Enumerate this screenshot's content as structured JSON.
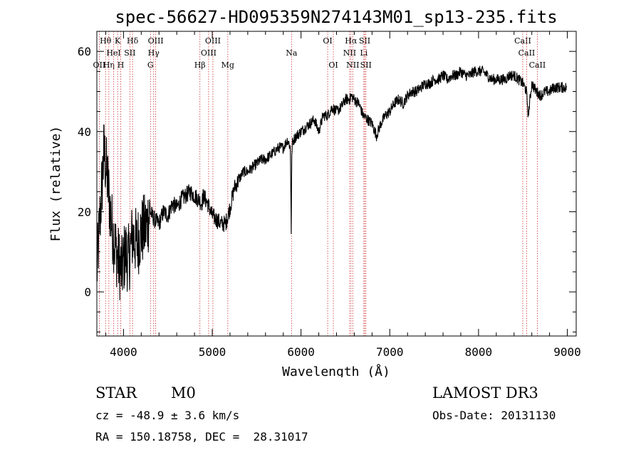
{
  "chart_data": {
    "type": "line",
    "title": "spec-56627-HD095359N274143M01_sp13-235.fits",
    "xlabel": "Wavelength (Å)",
    "ylabel": "Flux (relative)",
    "xlim": [
      3700,
      9100
    ],
    "ylim": [
      -11,
      65
    ],
    "xticks": [
      4000,
      5000,
      6000,
      7000,
      8000,
      9000
    ],
    "yticks": [
      0,
      20,
      40,
      60
    ],
    "series": [
      {
        "name": "spectrum",
        "x": [
          3700,
          3740,
          3780,
          3820,
          3860,
          3900,
          3940,
          3980,
          4020,
          4060,
          4100,
          4150,
          4200,
          4250,
          4300,
          4350,
          4400,
          4450,
          4500,
          4550,
          4600,
          4650,
          4700,
          4750,
          4800,
          4850,
          4880,
          4900,
          4950,
          5000,
          5050,
          5100,
          5150,
          5200,
          5250,
          5300,
          5350,
          5400,
          5450,
          5500,
          5550,
          5600,
          5650,
          5700,
          5750,
          5800,
          5850,
          5880,
          5890,
          5895,
          5900,
          5920,
          5950,
          6000,
          6050,
          6100,
          6150,
          6200,
          6250,
          6300,
          6350,
          6400,
          6450,
          6500,
          6550,
          6563,
          6600,
          6650,
          6700,
          6750,
          6800,
          6850,
          6900,
          6950,
          7000,
          7050,
          7100,
          7150,
          7200,
          7250,
          7300,
          7350,
          7400,
          7450,
          7500,
          7550,
          7600,
          7650,
          7700,
          7750,
          7800,
          7850,
          7900,
          7950,
          8000,
          8050,
          8100,
          8150,
          8200,
          8250,
          8300,
          8350,
          8400,
          8450,
          8500,
          8540,
          8560,
          8600,
          8650,
          8700,
          8750,
          8800,
          8850,
          8900,
          8950,
          8990
        ],
        "y": [
          5,
          20,
          35,
          28,
          18,
          12,
          8,
          5,
          10,
          8,
          14,
          12,
          15,
          16,
          20,
          18,
          17,
          20,
          19,
          22,
          21,
          23,
          24,
          25,
          24,
          23,
          22,
          24,
          22,
          19,
          18,
          17,
          17,
          21,
          26,
          28,
          30,
          30,
          31,
          32,
          33,
          33,
          34,
          35,
          36,
          36,
          38,
          36,
          15,
          32,
          37,
          38,
          39,
          40,
          41,
          42,
          43,
          40,
          44,
          44,
          46,
          45,
          46,
          48,
          48,
          49,
          48,
          47,
          44,
          43,
          42,
          39,
          42,
          44,
          45,
          47,
          48,
          47,
          49,
          50,
          50,
          51,
          52,
          52,
          53,
          53,
          54,
          53,
          54,
          54,
          55,
          54,
          54,
          55,
          55,
          55,
          54,
          53,
          53,
          53,
          53,
          54,
          54,
          53,
          52,
          50,
          44,
          52,
          50,
          49,
          50,
          50,
          51,
          51,
          51,
          51
        ]
      }
    ],
    "line_markers": [
      {
        "w": 3727,
        "label": "OII",
        "row": 2
      },
      {
        "w": 3798,
        "label": "Hθ",
        "row": 0
      },
      {
        "w": 3835,
        "label": "Hη",
        "row": 2
      },
      {
        "w": 3889,
        "label": "HeI",
        "row": 1
      },
      {
        "w": 3934,
        "label": "K",
        "row": 0
      },
      {
        "w": 3969,
        "label": "H",
        "row": 2
      },
      {
        "w": 4072,
        "label": "SII",
        "row": 1
      },
      {
        "w": 4102,
        "label": "Hδ",
        "row": 0
      },
      {
        "w": 4304,
        "label": "G",
        "row": 2
      },
      {
        "w": 4340,
        "label": "Hγ",
        "row": 1
      },
      {
        "w": 4363,
        "label": "OIII",
        "row": 0
      },
      {
        "w": 4861,
        "label": "Hβ",
        "row": 2
      },
      {
        "w": 4959,
        "label": "OIII",
        "row": 1
      },
      {
        "w": 5007,
        "label": "OIII",
        "row": 0
      },
      {
        "w": 5175,
        "label": "Mg",
        "row": 2
      },
      {
        "w": 5893,
        "label": "Na",
        "row": 1
      },
      {
        "w": 6300,
        "label": "OI",
        "row": 0
      },
      {
        "w": 6364,
        "label": "OI",
        "row": 2
      },
      {
        "w": 6548,
        "label": "NII",
        "row": 1
      },
      {
        "w": 6563,
        "label": "Hα",
        "row": 0
      },
      {
        "w": 6583,
        "label": "NII",
        "row": 2
      },
      {
        "w": 6708,
        "label": "Li",
        "row": 1
      },
      {
        "w": 6717,
        "label": "SII",
        "row": 0
      },
      {
        "w": 6731,
        "label": "SII",
        "row": 2
      },
      {
        "w": 8498,
        "label": "CaII",
        "row": 0
      },
      {
        "w": 8542,
        "label": "CaII",
        "row": 1
      },
      {
        "w": 8662,
        "label": "CaII",
        "row": 2
      }
    ]
  },
  "info": {
    "class_label": "STAR",
    "subclass": "M0",
    "survey": "LAMOST DR3",
    "redshift_line": "cz = -48.9 ± 3.6 km/s",
    "obs_date_line": "Obs-Date: 20131130",
    "coord_line": "RA = 150.18758, DEC =  28.31017"
  }
}
